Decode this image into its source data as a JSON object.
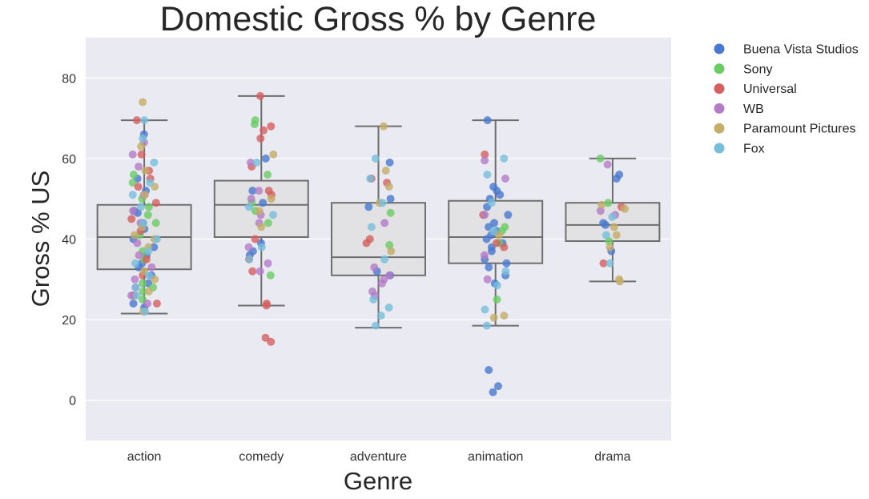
{
  "chart_data": {
    "type": "box",
    "title": "Domestic Gross % by Genre",
    "xlabel": "Genre",
    "ylabel": "Gross % US",
    "ylim": [
      -10,
      90
    ],
    "yticks": [
      0,
      20,
      40,
      60,
      80
    ],
    "grid": true,
    "legend_position": "outside-right",
    "categories": [
      "action",
      "comedy",
      "adventure",
      "animation",
      "drama"
    ],
    "boxes": [
      {
        "category": "action",
        "whisker_low": 21.5,
        "q1": 32.5,
        "median": 40.5,
        "q3": 48.5,
        "whisker_high": 69.5
      },
      {
        "category": "comedy",
        "whisker_low": 23.5,
        "q1": 40.5,
        "median": 48.5,
        "q3": 54.5,
        "whisker_high": 75.5
      },
      {
        "category": "adventure",
        "whisker_low": 18.0,
        "q1": 31.0,
        "median": 35.5,
        "q3": 49.0,
        "whisker_high": 68.0
      },
      {
        "category": "animation",
        "whisker_low": 18.5,
        "q1": 34.0,
        "median": 40.5,
        "q3": 49.5,
        "whisker_high": 69.5
      },
      {
        "category": "drama",
        "whisker_low": 29.5,
        "q1": 39.5,
        "median": 43.5,
        "q3": 49.0,
        "whisker_high": 60.0
      }
    ],
    "series": [
      {
        "name": "Buena Vista Studios",
        "color": "#4878cf",
        "points": [
          [
            "action",
            66
          ],
          [
            "action",
            52
          ],
          [
            "action",
            47
          ],
          [
            "action",
            46.5
          ],
          [
            "action",
            44
          ],
          [
            "action",
            42.5
          ],
          [
            "action",
            40
          ],
          [
            "action",
            38
          ],
          [
            "action",
            36
          ],
          [
            "action",
            34
          ],
          [
            "action",
            33
          ],
          [
            "action",
            31
          ],
          [
            "action",
            29
          ],
          [
            "action",
            24
          ],
          [
            "action",
            23
          ],
          [
            "action",
            55
          ],
          [
            "comedy",
            60
          ],
          [
            "comedy",
            52
          ],
          [
            "comedy",
            49
          ],
          [
            "comedy",
            39
          ],
          [
            "comedy",
            37
          ],
          [
            "comedy",
            36
          ],
          [
            "adventure",
            59
          ],
          [
            "adventure",
            50
          ],
          [
            "adventure",
            48
          ],
          [
            "adventure",
            32
          ],
          [
            "adventure",
            31
          ],
          [
            "animation",
            69.5
          ],
          [
            "animation",
            53
          ],
          [
            "animation",
            52
          ],
          [
            "animation",
            51
          ],
          [
            "animation",
            50
          ],
          [
            "animation",
            48
          ],
          [
            "animation",
            46
          ],
          [
            "animation",
            44
          ],
          [
            "animation",
            43
          ],
          [
            "animation",
            42
          ],
          [
            "animation",
            41
          ],
          [
            "animation",
            40
          ],
          [
            "animation",
            39
          ],
          [
            "animation",
            38
          ],
          [
            "animation",
            37
          ],
          [
            "animation",
            35
          ],
          [
            "animation",
            34
          ],
          [
            "animation",
            33
          ],
          [
            "animation",
            31
          ],
          [
            "animation",
            29
          ],
          [
            "animation",
            7.5
          ],
          [
            "animation",
            3.5
          ],
          [
            "animation",
            2
          ],
          [
            "drama",
            56
          ],
          [
            "drama",
            55
          ],
          [
            "drama",
            44
          ],
          [
            "drama",
            43.5
          ],
          [
            "drama",
            37
          ]
        ]
      },
      {
        "name": "Sony",
        "color": "#6acc65",
        "points": [
          [
            "action",
            56
          ],
          [
            "action",
            54
          ],
          [
            "action",
            50
          ],
          [
            "action",
            48
          ],
          [
            "action",
            46
          ],
          [
            "action",
            44
          ],
          [
            "action",
            41
          ],
          [
            "action",
            37
          ],
          [
            "action",
            35
          ],
          [
            "action",
            29
          ],
          [
            "action",
            28
          ],
          [
            "action",
            27
          ],
          [
            "action",
            25
          ],
          [
            "comedy",
            69.5
          ],
          [
            "comedy",
            68.5
          ],
          [
            "comedy",
            56
          ],
          [
            "comedy",
            49
          ],
          [
            "comedy",
            47
          ],
          [
            "comedy",
            44
          ],
          [
            "comedy",
            31
          ],
          [
            "adventure",
            46.5
          ],
          [
            "adventure",
            38.5
          ],
          [
            "animation",
            43
          ],
          [
            "animation",
            42
          ],
          [
            "animation",
            39
          ],
          [
            "animation",
            25
          ],
          [
            "drama",
            60
          ],
          [
            "drama",
            49
          ],
          [
            "drama",
            39.5
          ]
        ]
      },
      {
        "name": "Universal",
        "color": "#d65f5f",
        "points": [
          [
            "action",
            69.5
          ],
          [
            "action",
            61
          ],
          [
            "action",
            57
          ],
          [
            "action",
            55
          ],
          [
            "action",
            53
          ],
          [
            "action",
            49
          ],
          [
            "action",
            45
          ],
          [
            "action",
            42
          ],
          [
            "action",
            35
          ],
          [
            "action",
            31
          ],
          [
            "action",
            26
          ],
          [
            "action",
            24
          ],
          [
            "comedy",
            75.5
          ],
          [
            "comedy",
            68
          ],
          [
            "comedy",
            67
          ],
          [
            "comedy",
            65
          ],
          [
            "comedy",
            58
          ],
          [
            "comedy",
            52
          ],
          [
            "comedy",
            51
          ],
          [
            "comedy",
            40
          ],
          [
            "comedy",
            35
          ],
          [
            "comedy",
            32
          ],
          [
            "comedy",
            24
          ],
          [
            "comedy",
            23.5
          ],
          [
            "comedy",
            15.5
          ],
          [
            "comedy",
            14.5
          ],
          [
            "adventure",
            55
          ],
          [
            "adventure",
            54
          ],
          [
            "adventure",
            40
          ],
          [
            "adventure",
            39
          ],
          [
            "animation",
            61
          ],
          [
            "animation",
            46
          ],
          [
            "animation",
            39
          ],
          [
            "animation",
            38
          ],
          [
            "drama",
            48
          ],
          [
            "drama",
            34
          ]
        ]
      },
      {
        "name": "WB",
        "color": "#b47cc7",
        "points": [
          [
            "action",
            64
          ],
          [
            "action",
            61
          ],
          [
            "action",
            58
          ],
          [
            "action",
            51
          ],
          [
            "action",
            47
          ],
          [
            "action",
            44
          ],
          [
            "action",
            39
          ],
          [
            "action",
            36
          ],
          [
            "action",
            33
          ],
          [
            "action",
            30
          ],
          [
            "action",
            28
          ],
          [
            "action",
            26
          ],
          [
            "action",
            24
          ],
          [
            "comedy",
            59
          ],
          [
            "comedy",
            52
          ],
          [
            "comedy",
            50
          ],
          [
            "comedy",
            46
          ],
          [
            "comedy",
            44
          ],
          [
            "comedy",
            38
          ],
          [
            "comedy",
            34
          ],
          [
            "comedy",
            32
          ],
          [
            "adventure",
            44
          ],
          [
            "adventure",
            33
          ],
          [
            "adventure",
            31
          ],
          [
            "adventure",
            30
          ],
          [
            "adventure",
            29
          ],
          [
            "adventure",
            27
          ],
          [
            "adventure",
            26
          ],
          [
            "animation",
            59.5
          ],
          [
            "animation",
            55
          ],
          [
            "animation",
            46
          ],
          [
            "animation",
            36
          ],
          [
            "animation",
            30
          ],
          [
            "drama",
            58.5
          ],
          [
            "drama",
            47
          ],
          [
            "drama",
            46
          ]
        ]
      },
      {
        "name": "Paramount Pictures",
        "color": "#c4ad66",
        "points": [
          [
            "action",
            74
          ],
          [
            "action",
            63
          ],
          [
            "action",
            57
          ],
          [
            "action",
            53
          ],
          [
            "action",
            51
          ],
          [
            "action",
            43
          ],
          [
            "action",
            41
          ],
          [
            "action",
            40
          ],
          [
            "action",
            38
          ],
          [
            "action",
            32
          ],
          [
            "action",
            30
          ],
          [
            "action",
            27
          ],
          [
            "action",
            22
          ],
          [
            "comedy",
            61
          ],
          [
            "comedy",
            50
          ],
          [
            "comedy",
            47
          ],
          [
            "comedy",
            43
          ],
          [
            "adventure",
            68
          ],
          [
            "adventure",
            57
          ],
          [
            "adventure",
            53
          ],
          [
            "adventure",
            49
          ],
          [
            "adventure",
            37
          ],
          [
            "animation",
            41
          ],
          [
            "animation",
            21
          ],
          [
            "animation",
            20.5
          ],
          [
            "drama",
            48.5
          ],
          [
            "drama",
            47.5
          ],
          [
            "drama",
            43
          ],
          [
            "drama",
            41
          ],
          [
            "drama",
            38
          ],
          [
            "drama",
            30
          ],
          [
            "drama",
            29.5
          ]
        ]
      },
      {
        "name": "Fox",
        "color": "#77bedb",
        "points": [
          [
            "action",
            69.5
          ],
          [
            "action",
            65
          ],
          [
            "action",
            59
          ],
          [
            "action",
            54
          ],
          [
            "action",
            51
          ],
          [
            "action",
            48
          ],
          [
            "action",
            44
          ],
          [
            "action",
            40
          ],
          [
            "action",
            37
          ],
          [
            "action",
            34
          ],
          [
            "action",
            31
          ],
          [
            "action",
            28
          ],
          [
            "action",
            26
          ],
          [
            "action",
            22
          ],
          [
            "comedy",
            59
          ],
          [
            "comedy",
            48
          ],
          [
            "comedy",
            46
          ],
          [
            "comedy",
            38
          ],
          [
            "comedy",
            35
          ],
          [
            "adventure",
            60
          ],
          [
            "adventure",
            55
          ],
          [
            "adventure",
            49
          ],
          [
            "adventure",
            43
          ],
          [
            "adventure",
            35
          ],
          [
            "adventure",
            25
          ],
          [
            "adventure",
            23
          ],
          [
            "adventure",
            21
          ],
          [
            "adventure",
            18.5
          ],
          [
            "animation",
            60
          ],
          [
            "animation",
            56
          ],
          [
            "animation",
            49
          ],
          [
            "animation",
            42
          ],
          [
            "animation",
            32
          ],
          [
            "animation",
            28.5
          ],
          [
            "animation",
            22.5
          ],
          [
            "animation",
            18.5
          ],
          [
            "drama",
            45.5
          ],
          [
            "drama",
            41
          ],
          [
            "drama",
            34
          ]
        ]
      }
    ]
  }
}
